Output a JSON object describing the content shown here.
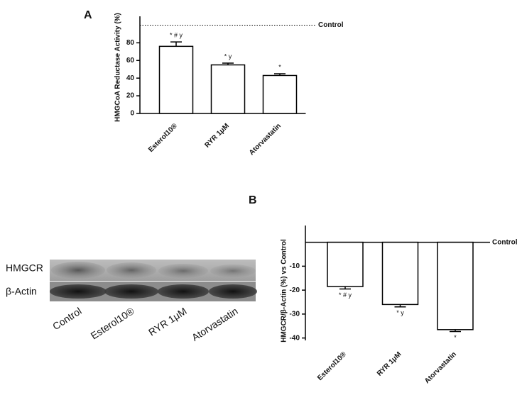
{
  "chart_data": [
    {
      "type": "bar",
      "title": "A",
      "y_label": "HMGCoA Reductase Activity (%)",
      "categories": [
        "Esterol10®",
        "RYR 1μM",
        "Atorvastatin"
      ],
      "values": [
        76,
        55,
        43
      ],
      "errors": [
        5,
        2,
        2
      ],
      "annotations": [
        "* # y",
        "* y",
        "*"
      ],
      "color": "#ffffff",
      "ylim": [
        0,
        110
      ],
      "yticks": [
        0,
        20,
        40,
        60,
        80
      ],
      "reference_line": {
        "value": 100,
        "label": "Control"
      }
    },
    {
      "type": "bar",
      "title": "B",
      "y_label": "HMGCR/β-Actin (%) vs Control",
      "categories": [
        "Esterol10®",
        "RYR 1μM",
        "Atorvastatin"
      ],
      "values": [
        -18.5,
        -26,
        -36.5
      ],
      "errors": [
        1,
        1,
        0.8
      ],
      "annotations": [
        "* # y",
        "* y",
        "*"
      ],
      "color": "#ffffff",
      "ylim": [
        -41,
        7
      ],
      "yticks": [
        -10,
        -20,
        -30,
        -40
      ],
      "reference_line": {
        "value": 0,
        "label": "Control"
      }
    }
  ],
  "blot": {
    "rows": [
      "HMGCR",
      "β-Actin"
    ],
    "lanes": [
      "Control",
      "Esterol10®",
      "RYR 1μM",
      "Atorvastatin"
    ]
  }
}
